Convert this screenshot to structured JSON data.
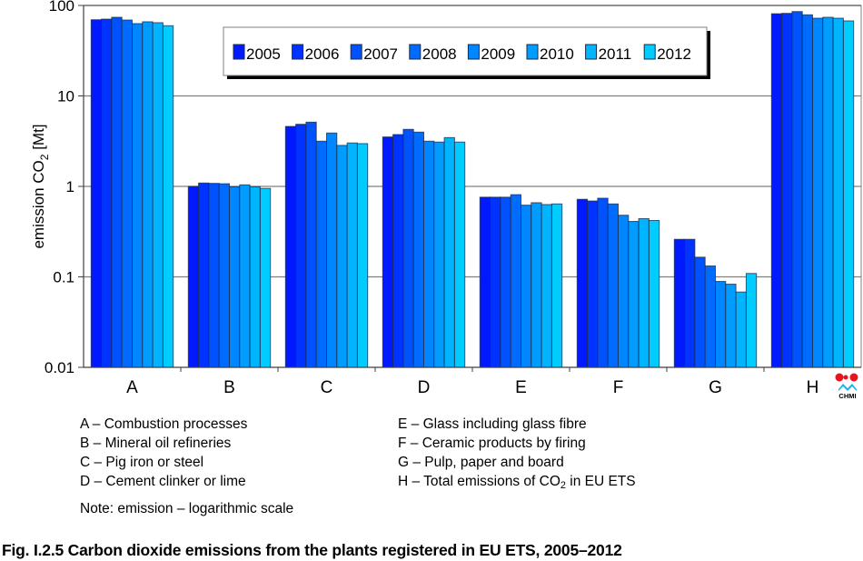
{
  "chart_data": {
    "type": "bar",
    "title": "Carbon dioxide emissions from the plants registered in EU ETS, 2005–2012",
    "xlabel": "",
    "ylabel": "emission CO2 [Mt]",
    "ylabel_parts": {
      "before": "emission CO",
      "sub": "2",
      "after": " [Mt]"
    },
    "yscale": "log",
    "ylim": [
      0.01,
      100
    ],
    "yticks": [
      100,
      10,
      1,
      0.1,
      0.01
    ],
    "ytick_labels": [
      "100",
      "10",
      "1",
      "0.1",
      "0.01"
    ],
    "grid": true,
    "legend_position": "top-center",
    "categories": [
      "A",
      "B",
      "C",
      "D",
      "E",
      "F",
      "G",
      "H"
    ],
    "series": [
      {
        "name": "2005",
        "color": "#0019FF",
        "values": [
          69.5,
          1.0,
          4.6,
          3.52,
          0.76,
          0.72,
          0.26,
          81.0
        ]
      },
      {
        "name": "2006",
        "color": "#0033FF",
        "values": [
          70.6,
          1.09,
          4.86,
          3.74,
          0.76,
          0.69,
          0.26,
          81.8
        ]
      },
      {
        "name": "2007",
        "color": "#0052FF",
        "values": [
          74.0,
          1.08,
          5.13,
          4.27,
          0.76,
          0.74,
          0.165,
          85.6
        ]
      },
      {
        "name": "2008",
        "color": "#006CFF",
        "values": [
          69.0,
          1.07,
          3.16,
          3.98,
          0.81,
          0.64,
          0.132,
          78.8
        ]
      },
      {
        "name": "2009",
        "color": "#0086FF",
        "values": [
          63.0,
          0.99,
          3.89,
          3.16,
          0.62,
          0.48,
          0.089,
          72.3
        ]
      },
      {
        "name": "2010",
        "color": "#009CFF",
        "values": [
          66.0,
          1.04,
          2.84,
          3.09,
          0.66,
          0.41,
          0.083,
          74.0
        ]
      },
      {
        "name": "2011",
        "color": "#00B4FF",
        "values": [
          64.5,
          0.99,
          3.02,
          3.46,
          0.63,
          0.44,
          0.068,
          72.3
        ]
      },
      {
        "name": "2012",
        "color": "#00CCFF",
        "values": [
          59.7,
          0.95,
          2.97,
          3.09,
          0.64,
          0.42,
          0.109,
          67.5
        ]
      }
    ]
  },
  "category_notes": {
    "left": [
      {
        "text": "A – Combustion processes"
      },
      {
        "text": "B – Mineral oil refineries"
      },
      {
        "text": "C – Pig iron or steel"
      },
      {
        "text": "D – Cement clinker or lime"
      }
    ],
    "right": [
      {
        "text": "E – Glass including glass fibre"
      },
      {
        "text": "F – Ceramic products by firing"
      },
      {
        "text": "G – Pulp, paper and board"
      },
      {
        "before": "H – Total emissions of CO",
        "sub": "2",
        "after": " in EU ETS"
      }
    ]
  },
  "note": "Note: emission – logarithmic scale",
  "caption": "Fig. I.2.5  Carbon dioxide emissions from the plants registered in EU ETS, 2005–2012",
  "logo": {
    "text": "CHMI",
    "colors": {
      "red": "#E8141C",
      "blue": "#1EB4E6"
    }
  }
}
